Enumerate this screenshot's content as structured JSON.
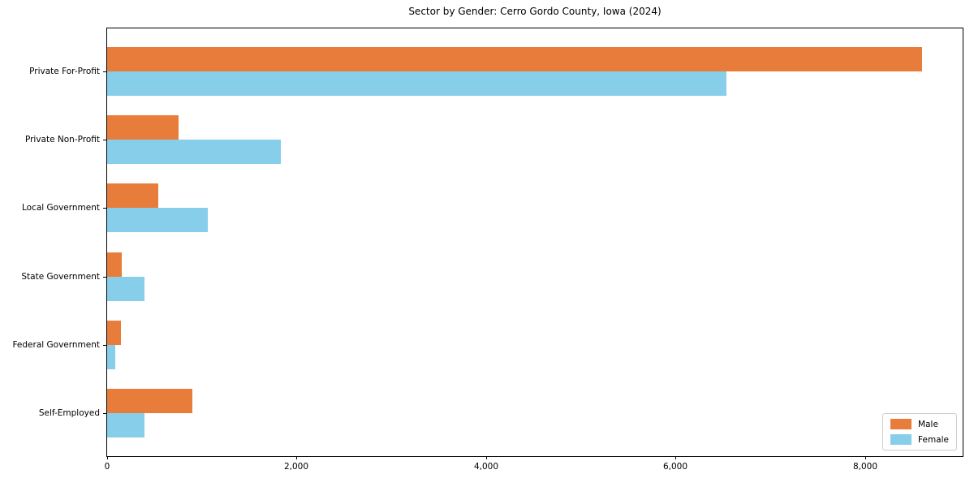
{
  "title": "Sector by Gender: Cerro Gordo County, Iowa (2024)",
  "chart_data": {
    "type": "bar",
    "orientation": "horizontal",
    "title": "Sector by Gender: Cerro Gordo County, Iowa (2024)",
    "xlabel": "",
    "ylabel": "",
    "categories": [
      "Private For-Profit",
      "Private Non-Profit",
      "Local Government",
      "State Government",
      "Federal Government",
      "Self-Employed"
    ],
    "series": [
      {
        "name": "Male",
        "color": "#e87d3b",
        "values": [
          8600,
          750,
          540,
          150,
          145,
          900
        ]
      },
      {
        "name": "Female",
        "color": "#87ceeb",
        "values": [
          6540,
          1830,
          1060,
          395,
          85,
          395
        ]
      }
    ],
    "xlim": [
      0,
      9030
    ],
    "xticks": [
      0,
      2000,
      4000,
      6000,
      8000
    ],
    "grid": false,
    "legend_position": "lower right",
    "legend_labels": [
      "Male",
      "Female"
    ]
  }
}
